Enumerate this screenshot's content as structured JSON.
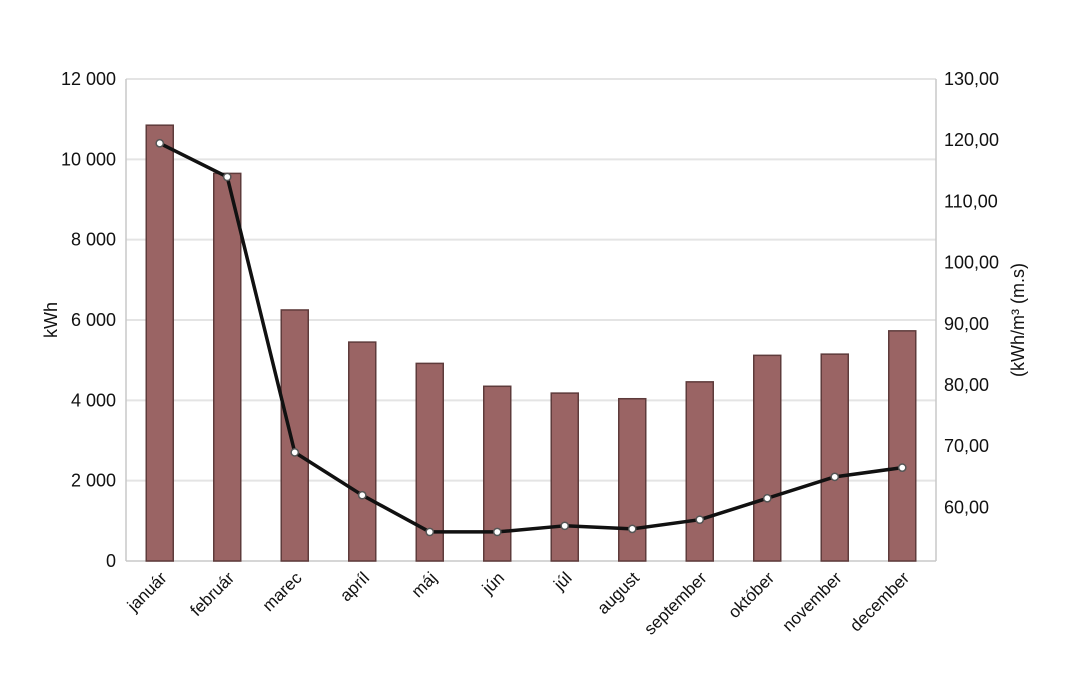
{
  "chart_data": {
    "type": "bar",
    "categories": [
      "január",
      "február",
      "marec",
      "apríl",
      "máj",
      "jún",
      "júl",
      "august",
      "september",
      "október",
      "november",
      "december"
    ],
    "series": [
      {
        "type": "bar",
        "axis": "left",
        "values": [
          10850,
          9650,
          6250,
          5450,
          4920,
          4350,
          4180,
          4040,
          4460,
          5120,
          5150,
          5730
        ]
      },
      {
        "type": "line",
        "axis": "right",
        "values": [
          119.5,
          114.0,
          69.0,
          62.0,
          56.0,
          56.0,
          57.0,
          56.5,
          58.0,
          61.5,
          65.0,
          66.5
        ]
      }
    ],
    "ylabel_left": "kWh",
    "ylabel_right": "(kWh/m³ (m.s)",
    "ylim_left": [
      0,
      12000
    ],
    "ylim_right": [
      51.25,
      130
    ],
    "yticks_left": [
      "0",
      "2 000",
      "4 000",
      "6 000",
      "8 000",
      "10 000",
      "12 000"
    ],
    "yticks_left_values": [
      0,
      2000,
      4000,
      6000,
      8000,
      10000,
      12000
    ],
    "yticks_right": [
      "60,00",
      "70,00",
      "80,00",
      "90,00",
      "100,00",
      "110,00",
      "120,00",
      "130,00"
    ],
    "yticks_right_values": [
      60,
      70,
      80,
      90,
      100,
      110,
      120,
      130
    ],
    "grid": true,
    "legend": "none",
    "colors": {
      "bar": "#9a6464",
      "bar_edge": "#5e3b3b",
      "line": "#111111",
      "marker_fill": "#ffffff",
      "grid": "#e4e4e4",
      "axis": "#c8c8c8"
    }
  }
}
